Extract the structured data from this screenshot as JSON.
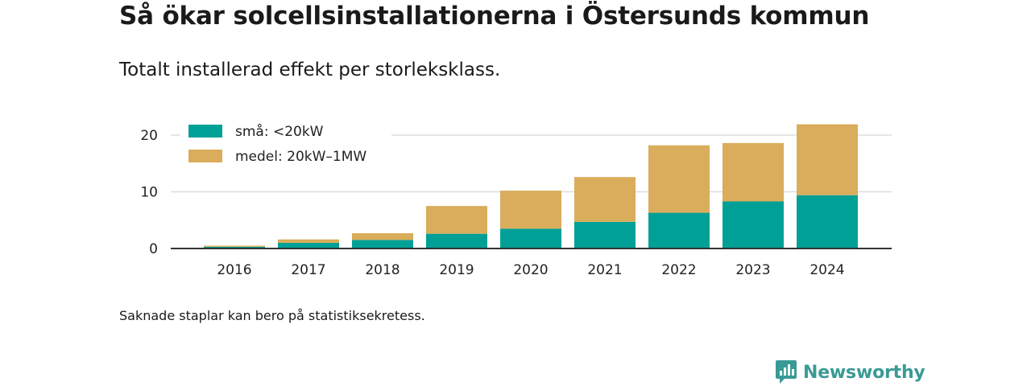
{
  "title": "Så ökar solcellsinstallationerna i Östersunds kommun",
  "subtitle": "Totalt installerad effekt per storleksklass.",
  "note": "Saknade staplar kan bero på statistiksekretess.",
  "brand": {
    "name": "Newsworthy",
    "icon": "newsworthy-logo-icon",
    "color": "#3a9a95"
  },
  "chart_data": {
    "type": "bar",
    "stacked": true,
    "categories": [
      "2016",
      "2017",
      "2018",
      "2019",
      "2020",
      "2021",
      "2022",
      "2023",
      "2024"
    ],
    "series": [
      {
        "name": "små: <20kW",
        "color": "#00a096",
        "values": [
          0.3,
          1.0,
          1.5,
          2.6,
          3.5,
          4.7,
          6.3,
          8.3,
          9.4
        ]
      },
      {
        "name": "medel: 20kW–1MW",
        "color": "#d9ad5b",
        "values": [
          0.2,
          0.6,
          1.2,
          4.9,
          6.7,
          7.9,
          11.9,
          10.3,
          12.5
        ]
      }
    ],
    "ylim": [
      0,
      22
    ],
    "yticks": [
      0,
      10,
      20
    ],
    "grid": true,
    "legend_position": "top-left",
    "xlabel": "",
    "ylabel": ""
  }
}
